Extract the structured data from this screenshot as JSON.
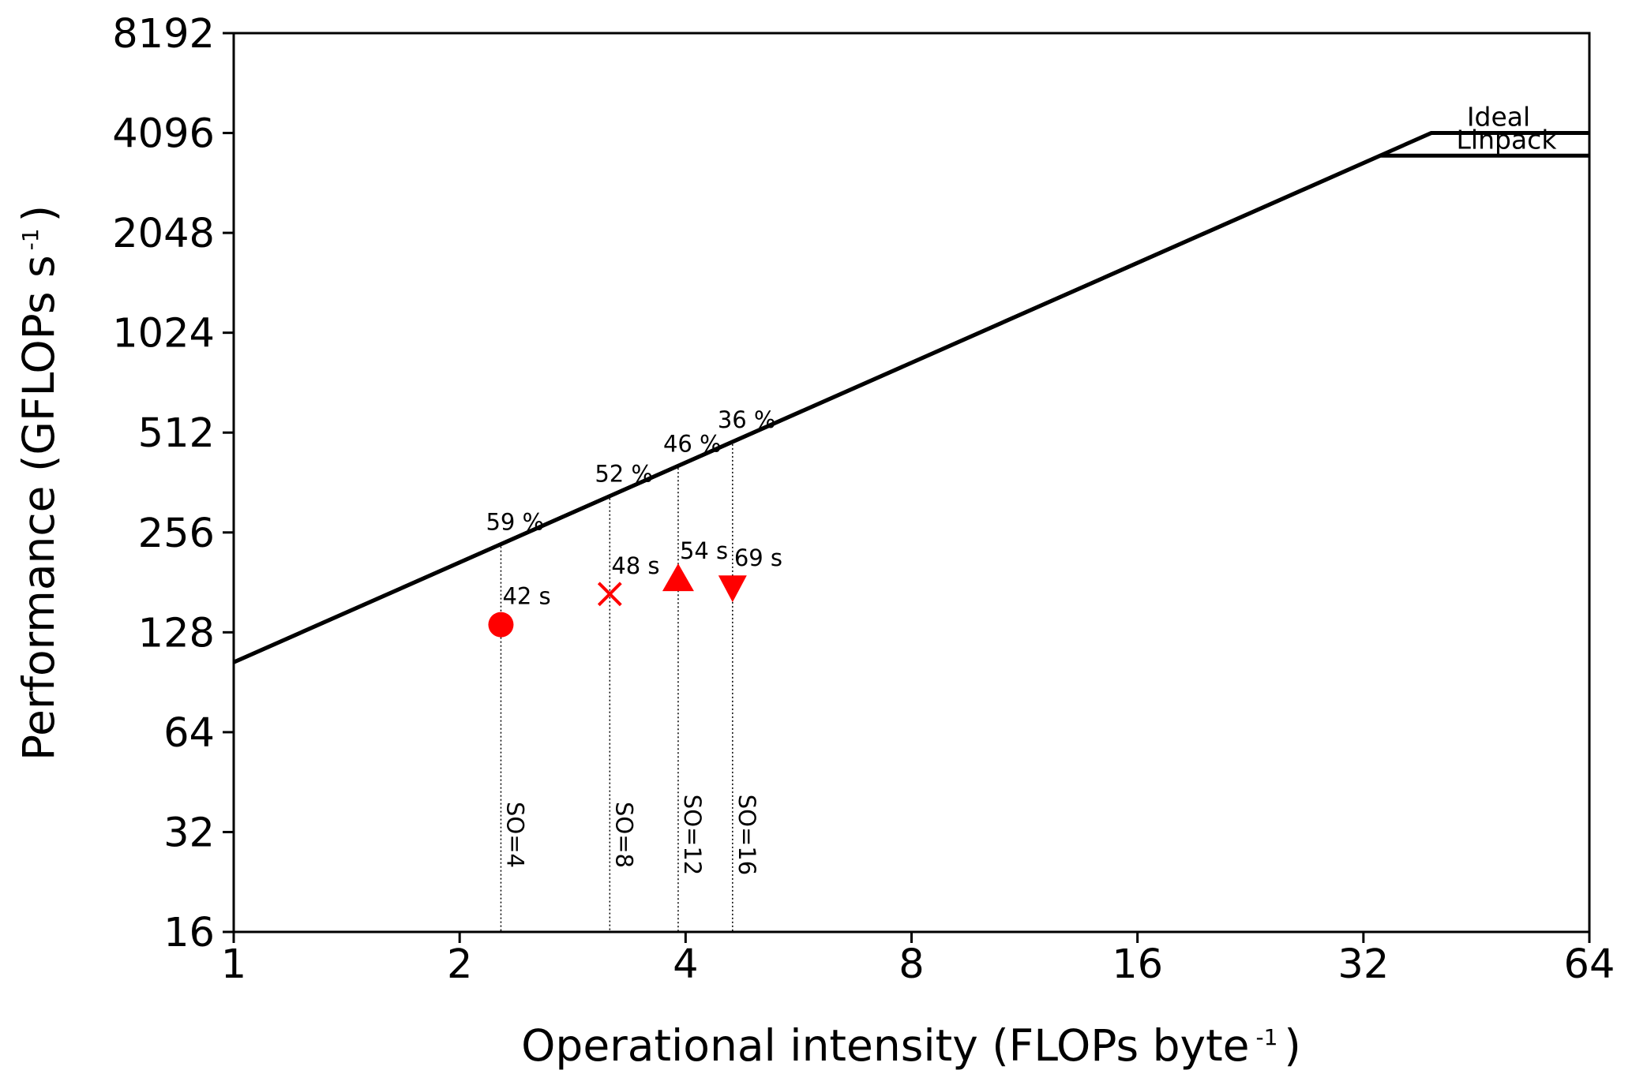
{
  "chart_data": {
    "type": "scatter",
    "x_scale": "log2",
    "y_scale": "log2",
    "xlim": [
      1,
      64
    ],
    "ylim": [
      16,
      8192
    ],
    "x_ticks": [
      "1",
      "2",
      "4",
      "8",
      "16",
      "32",
      "64"
    ],
    "y_ticks": [
      "16",
      "32",
      "64",
      "128",
      "256",
      "512",
      "1024",
      "2048",
      "4096",
      "8192"
    ],
    "xlabel": {
      "main": "Operational intensity (FLOPs byte",
      "sup": "-1",
      "close": ")"
    },
    "ylabel": {
      "main": "Performance (GFLOPs s",
      "sup": "-1",
      "close": ")"
    },
    "grid": false,
    "rooflines": [
      {
        "name": "Ideal",
        "slope_coefficient": 104,
        "peak": 4096,
        "ridge_x": 39.4
      },
      {
        "name": "Linpack",
        "slope_coefficient": 104,
        "peak": 3500,
        "ridge_x": 33.7
      }
    ],
    "points": [
      {
        "label": "SO=4",
        "x": 2.27,
        "y": 135,
        "marker": "circle",
        "time": "42 s",
        "efficiency": "59 %"
      },
      {
        "label": "SO=8",
        "x": 3.17,
        "y": 167,
        "marker": "x",
        "time": "48 s",
        "efficiency": "52 %"
      },
      {
        "label": "SO=12",
        "x": 3.91,
        "y": 185,
        "marker": "triangle-up",
        "time": "54 s",
        "efficiency": "46 %"
      },
      {
        "label": "SO=16",
        "x": 4.62,
        "y": 176,
        "marker": "triangle-down",
        "time": "69 s",
        "efficiency": "36 %"
      }
    ],
    "colors": {
      "points": "#ff0000",
      "roofline": "#000000",
      "guide": "#000000"
    }
  }
}
